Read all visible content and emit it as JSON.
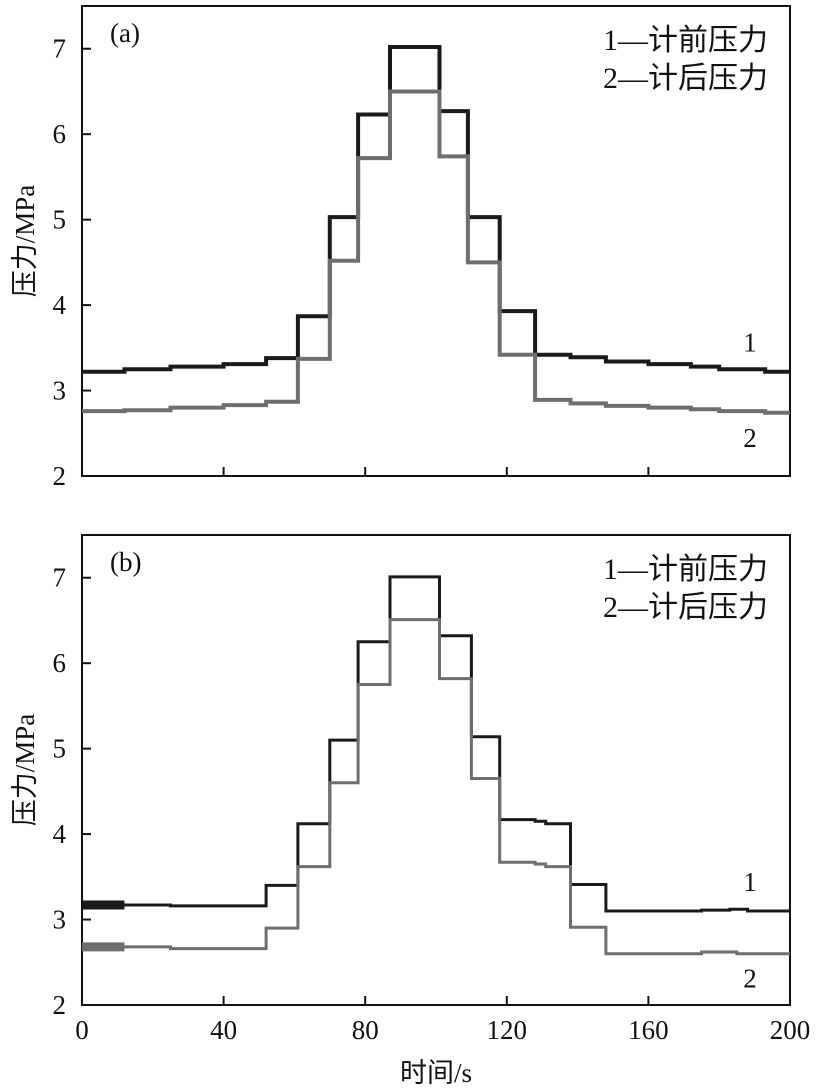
{
  "colors": {
    "series1": "#1a1a1a",
    "series2": "#6e6e6e",
    "axis": "#111111"
  },
  "x_axis_label": "时间/s",
  "chart_data": [
    {
      "type": "line",
      "panel": "(a)",
      "xlim": [
        0,
        200
      ],
      "ylim": [
        2,
        7.5
      ],
      "xticks": [
        0,
        40,
        80,
        120,
        160,
        200
      ],
      "xtick_labels": [
        "",
        "",
        "",
        "",
        "",
        ""
      ],
      "yticks": [
        2,
        3,
        4,
        5,
        6,
        7
      ],
      "ytick_labels": [
        "2",
        "3",
        "4",
        "5",
        "6",
        "7"
      ],
      "xlabel": "",
      "ylabel": "压力/MPa",
      "legend": [
        "1—计前压力",
        "2—计后压力"
      ],
      "legend_position": "top-right",
      "grid": false,
      "series": [
        {
          "name": "1",
          "end_label": "1",
          "x": [
            0,
            12,
            12,
            25,
            25,
            40,
            40,
            52,
            52,
            61,
            61,
            70,
            70,
            78,
            78,
            87,
            87,
            101,
            101,
            109,
            109,
            118,
            118,
            128,
            128,
            138,
            138,
            148,
            148,
            160,
            160,
            172,
            172,
            180,
            180,
            193,
            193,
            200
          ],
          "y": [
            3.22,
            3.22,
            3.25,
            3.25,
            3.28,
            3.28,
            3.31,
            3.31,
            3.38,
            3.38,
            3.87,
            3.87,
            5.03,
            5.03,
            6.23,
            6.23,
            7.02,
            7.02,
            6.27,
            6.27,
            5.03,
            5.03,
            3.93,
            3.93,
            3.42,
            3.42,
            3.39,
            3.39,
            3.34,
            3.34,
            3.31,
            3.31,
            3.28,
            3.28,
            3.25,
            3.25,
            3.22,
            3.22
          ]
        },
        {
          "name": "2",
          "end_label": "2",
          "x": [
            0,
            12,
            12,
            25,
            25,
            40,
            40,
            52,
            52,
            61,
            61,
            70,
            70,
            78,
            78,
            87,
            87,
            101,
            101,
            109,
            109,
            118,
            118,
            128,
            128,
            138,
            138,
            148,
            148,
            160,
            160,
            172,
            172,
            180,
            180,
            193,
            193,
            200
          ],
          "y": [
            2.76,
            2.76,
            2.77,
            2.77,
            2.8,
            2.8,
            2.83,
            2.83,
            2.87,
            2.87,
            3.37,
            3.37,
            4.52,
            4.52,
            5.72,
            5.72,
            6.5,
            6.5,
            5.74,
            5.74,
            4.5,
            4.5,
            3.42,
            3.42,
            2.89,
            2.89,
            2.85,
            2.85,
            2.82,
            2.82,
            2.8,
            2.8,
            2.78,
            2.78,
            2.76,
            2.76,
            2.74,
            2.74
          ]
        }
      ]
    },
    {
      "type": "line",
      "panel": "(b)",
      "xlim": [
        0,
        200
      ],
      "ylim": [
        2,
        7.5
      ],
      "xticks": [
        0,
        40,
        80,
        120,
        160,
        200
      ],
      "xtick_labels": [
        "0",
        "40",
        "80",
        "120",
        "160",
        "200"
      ],
      "yticks": [
        2,
        3,
        4,
        5,
        6,
        7
      ],
      "ytick_labels": [
        "2",
        "3",
        "4",
        "5",
        "6",
        "7"
      ],
      "xlabel": "时间/s",
      "ylabel": "压力/MPa",
      "legend": [
        "1—计前压力",
        "2—计后压力"
      ],
      "legend_position": "top-right",
      "grid": false,
      "series": [
        {
          "name": "1",
          "end_label": "1",
          "x": [
            0,
            25,
            25,
            52,
            52,
            61,
            61,
            70,
            70,
            78,
            78,
            87,
            87,
            101,
            101,
            110,
            110,
            118,
            118,
            128,
            128,
            131,
            131,
            138,
            138,
            148,
            148,
            175,
            175,
            183,
            183,
            188,
            188,
            200
          ],
          "y": [
            3.17,
            3.17,
            3.16,
            3.16,
            3.4,
            3.4,
            4.12,
            4.12,
            5.1,
            5.1,
            6.25,
            6.25,
            7.01,
            7.01,
            6.32,
            6.32,
            5.14,
            5.14,
            4.17,
            4.17,
            4.15,
            4.15,
            4.12,
            4.12,
            3.41,
            3.41,
            3.1,
            3.1,
            3.11,
            3.11,
            3.12,
            3.12,
            3.1,
            3.1
          ]
        },
        {
          "name": "2",
          "end_label": "2",
          "x": [
            0,
            25,
            25,
            52,
            52,
            61,
            61,
            70,
            70,
            78,
            78,
            87,
            87,
            101,
            101,
            110,
            110,
            118,
            118,
            128,
            128,
            131,
            131,
            138,
            138,
            148,
            148,
            175,
            175,
            185,
            185,
            200
          ],
          "y": [
            2.68,
            2.68,
            2.66,
            2.66,
            2.9,
            2.9,
            3.62,
            3.62,
            4.6,
            4.6,
            5.75,
            5.75,
            6.51,
            6.51,
            5.82,
            5.82,
            4.65,
            4.65,
            3.67,
            3.67,
            3.65,
            3.65,
            3.62,
            3.62,
            2.91,
            2.91,
            2.6,
            2.6,
            2.62,
            2.62,
            2.6,
            2.6
          ]
        }
      ]
    }
  ]
}
